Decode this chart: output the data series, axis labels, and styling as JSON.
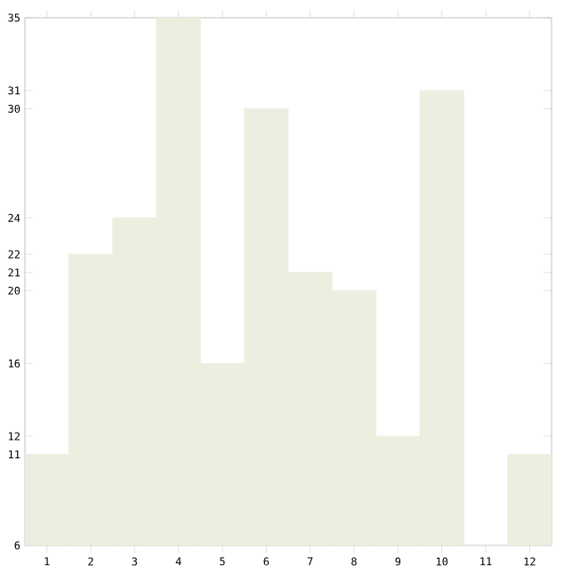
{
  "chart_data": {
    "type": "bar",
    "categories": [
      "1",
      "2",
      "3",
      "4",
      "5",
      "6",
      "7",
      "8",
      "9",
      "10",
      "11",
      "12"
    ],
    "values": [
      11,
      22,
      24,
      35,
      16,
      30,
      21,
      20,
      12,
      31,
      6,
      11
    ],
    "color": "#eeeee0",
    "ylim": [
      6,
      35
    ],
    "yticks": [
      6,
      11,
      12,
      16,
      20,
      21,
      22,
      24,
      30,
      31,
      35
    ],
    "grid": false
  }
}
